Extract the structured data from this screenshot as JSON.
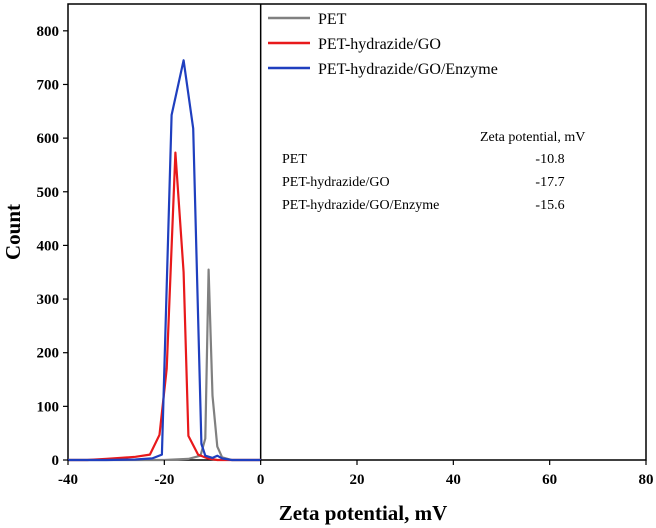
{
  "chart_data": {
    "type": "line",
    "title": "",
    "xlabel": "Zeta potential, mV",
    "ylabel": "Count",
    "xlim": [
      -40,
      80
    ],
    "ylim": [
      0,
      850
    ],
    "xticks": [
      -40,
      -20,
      0,
      20,
      40,
      60,
      80
    ],
    "yticks": [
      0,
      100,
      200,
      300,
      400,
      500,
      600,
      700,
      800
    ],
    "grid": false,
    "legend_position": "top-right",
    "series": [
      {
        "name": "PET",
        "color": "#808080",
        "x": [
          -40,
          -30,
          -20,
          -15,
          -12.5,
          -11.5,
          -10.8,
          -10,
          -9,
          -8,
          -6,
          -4,
          0
        ],
        "y": [
          0,
          0,
          0,
          2,
          8,
          40,
          355,
          120,
          25,
          5,
          0,
          0,
          0
        ]
      },
      {
        "name": "PET-hydrazide/GO",
        "color": "#e8191b",
        "x": [
          -40,
          -36,
          -32,
          -29,
          -26,
          -23,
          -21,
          -19.5,
          -17.7,
          -16,
          -15,
          -13,
          -11,
          -9,
          -7,
          -5,
          0
        ],
        "y": [
          0,
          0,
          2,
          4,
          6,
          10,
          47,
          170,
          573,
          350,
          45,
          10,
          3,
          0,
          0,
          0,
          0
        ]
      },
      {
        "name": "PET-hydrazide/GO/Enzyme",
        "color": "#1f3fbf",
        "x": [
          -40,
          -32,
          -26,
          -22.5,
          -20.5,
          -18.5,
          -16,
          -14,
          -12.3,
          -11.5,
          -10,
          -9,
          -8,
          -6,
          -4,
          0
        ],
        "y": [
          0,
          0,
          1,
          3,
          10,
          643,
          745,
          618,
          30,
          8,
          4,
          8,
          3,
          0,
          0,
          0
        ]
      }
    ],
    "table": {
      "header": "Zeta potential, mV",
      "rows": [
        {
          "label": "PET",
          "value": "-10.8"
        },
        {
          "label": "PET-hydrazide/GO",
          "value": "-17.7"
        },
        {
          "label": "PET-hydrazide/GO/Enzyme",
          "value": "-15.6"
        }
      ]
    }
  }
}
